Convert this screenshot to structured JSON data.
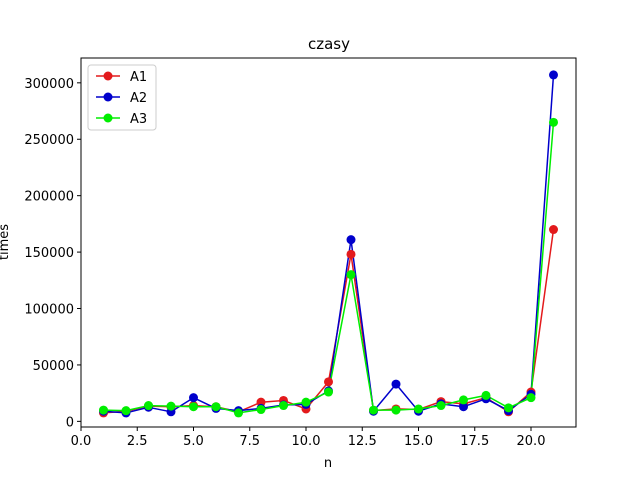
{
  "chart_data": {
    "type": "line",
    "title": "czasy",
    "xlabel": "n",
    "ylabel": "times",
    "xlim": [
      0.0,
      22.0
    ],
    "ylim": [
      -5000,
      322000
    ],
    "xticks": [
      0.0,
      2.5,
      5.0,
      7.5,
      10.0,
      12.5,
      15.0,
      17.5,
      20.0
    ],
    "xtick_labels": [
      "0.0",
      "2.5",
      "5.0",
      "7.5",
      "10.0",
      "12.5",
      "15.0",
      "17.5",
      "20.0"
    ],
    "yticks": [
      0,
      50000,
      100000,
      150000,
      200000,
      250000,
      300000
    ],
    "ytick_labels": [
      "0",
      "50000",
      "100000",
      "150000",
      "200000",
      "250000",
      "300000"
    ],
    "grid": false,
    "legend_position": "top-left",
    "x": [
      1,
      2,
      3,
      4,
      5,
      6,
      7,
      8,
      9,
      10,
      11,
      12,
      13,
      14,
      15,
      16,
      17,
      18,
      19,
      20,
      21
    ],
    "series": [
      {
        "name": "A1",
        "color": "#e31a1c",
        "values": [
          7500,
          9000,
          13500,
          13000,
          14000,
          13000,
          8500,
          17000,
          18500,
          11000,
          35000,
          148000,
          9500,
          11000,
          10500,
          17500,
          15500,
          21000,
          8500,
          26000,
          170000
        ]
      },
      {
        "name": "A2",
        "color": "#0000cc",
        "values": [
          9000,
          7500,
          12500,
          8500,
          21000,
          11500,
          9500,
          11500,
          14500,
          15000,
          27000,
          161000,
          9000,
          33000,
          9000,
          15500,
          13000,
          20000,
          9500,
          24000,
          307000
        ]
      },
      {
        "name": "A3",
        "color": "#00ee00",
        "values": [
          10000,
          9500,
          14000,
          13500,
          13000,
          13000,
          7500,
          10500,
          14000,
          17000,
          26000,
          130000,
          10000,
          10000,
          11000,
          14000,
          19000,
          23000,
          12000,
          21000,
          265000
        ]
      }
    ]
  }
}
